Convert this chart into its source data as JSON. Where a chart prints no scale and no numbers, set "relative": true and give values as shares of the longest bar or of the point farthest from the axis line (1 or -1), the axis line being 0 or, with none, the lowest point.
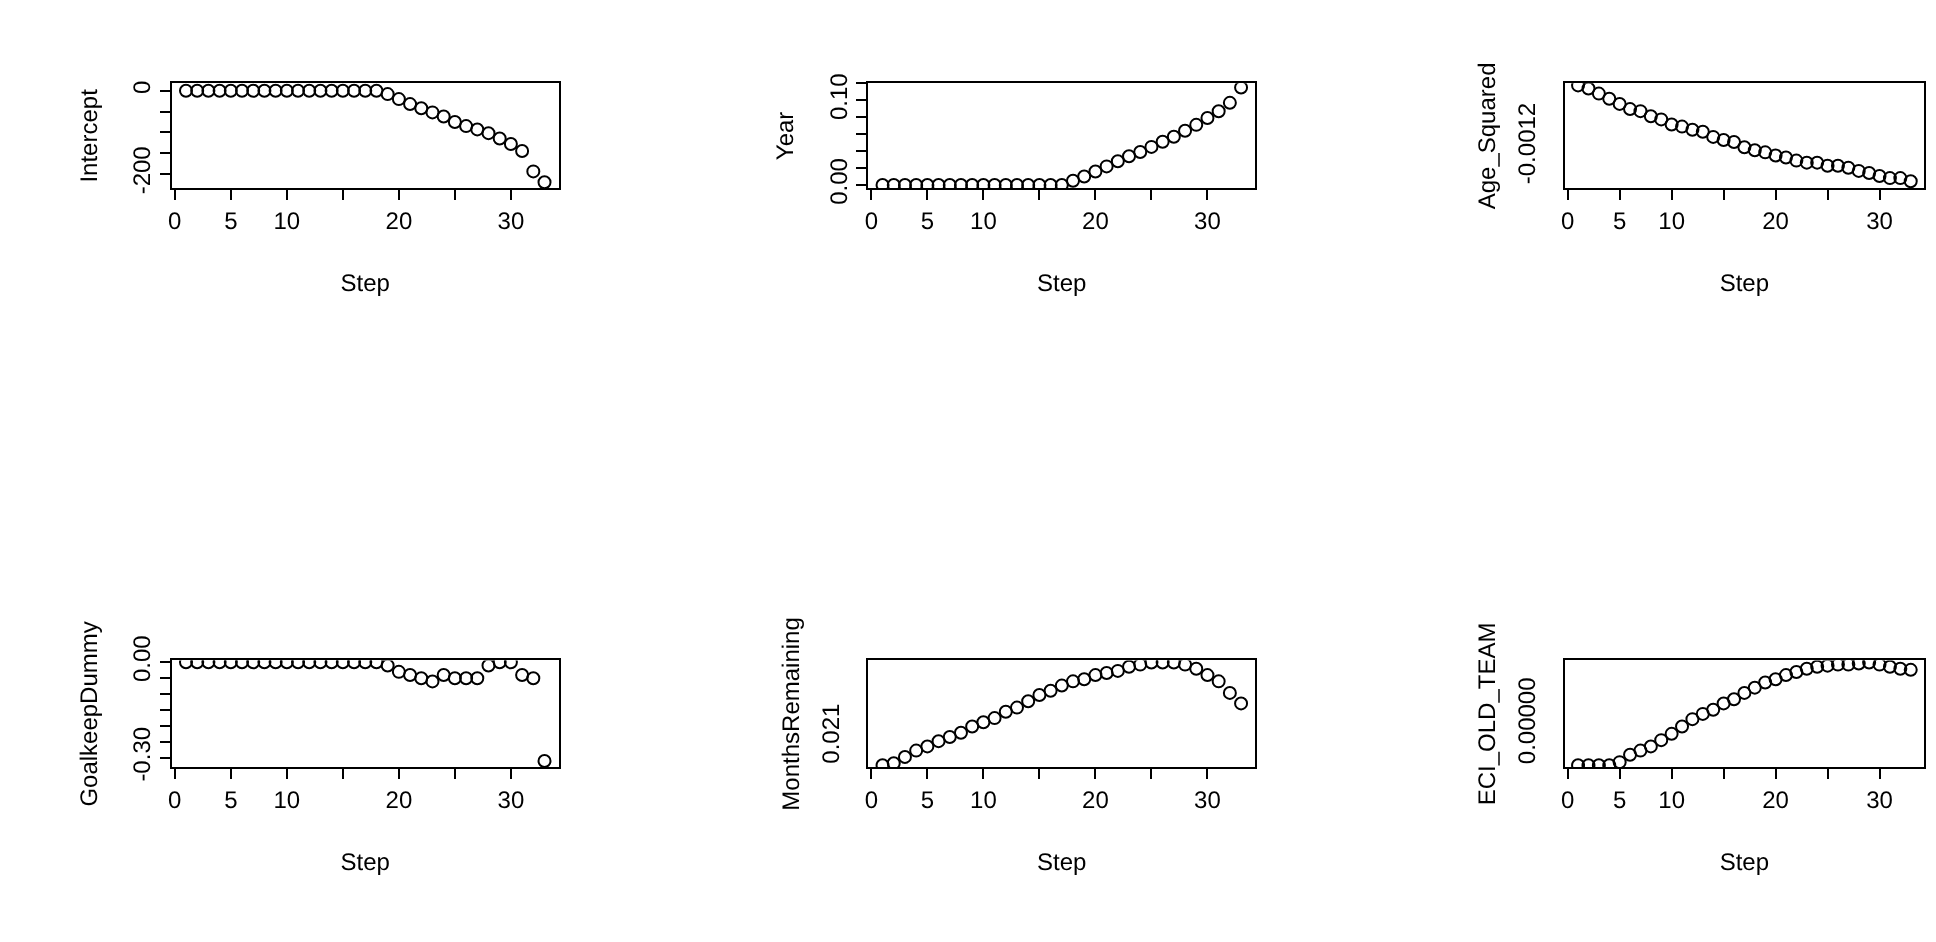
{
  "chart_data": [
    {
      "type": "scatter",
      "xlabel": "Step",
      "ylabel": "Intercept",
      "marker": "circle",
      "color": "#000000",
      "grid": false,
      "x": [
        1,
        2,
        3,
        4,
        5,
        6,
        7,
        8,
        9,
        10,
        11,
        12,
        13,
        14,
        15,
        16,
        17,
        18,
        19,
        20,
        21,
        22,
        23,
        24,
        25,
        26,
        27,
        28,
        29,
        30,
        31,
        32,
        33
      ],
      "values": [
        0,
        0,
        0,
        0,
        0,
        0,
        0,
        0,
        0,
        0,
        0,
        0,
        0,
        0,
        0,
        0,
        0,
        0,
        -8,
        -20,
        -32,
        -42,
        -52,
        -62,
        -75,
        -85,
        -93,
        -102,
        -115,
        -128,
        -145,
        -194,
        -220
      ],
      "xlim": [
        -0.28,
        34.28
      ],
      "xticks": [
        0,
        5,
        10,
        20,
        30
      ],
      "ylim": [
        -235,
        18
      ],
      "yticks": [
        {
          "value": -200,
          "label": "-200"
        },
        {
          "value": -150,
          "label": null
        },
        {
          "value": -100,
          "label": null
        },
        {
          "value": -50,
          "label": null
        },
        0
      ]
    },
    {
      "type": "scatter",
      "xlabel": "Step",
      "ylabel": "Year",
      "marker": "circle",
      "color": "#000000",
      "grid": false,
      "x": [
        1,
        2,
        3,
        4,
        5,
        6,
        7,
        8,
        9,
        10,
        11,
        12,
        13,
        14,
        15,
        16,
        17,
        18,
        19,
        20,
        21,
        22,
        23,
        24,
        25,
        26,
        27,
        28,
        29,
        30,
        31,
        32,
        33
      ],
      "values": [
        0,
        0,
        0,
        0,
        0,
        0,
        0,
        0,
        0,
        0,
        0,
        0,
        0,
        0,
        0,
        0,
        0,
        0.005,
        0.01,
        0.016,
        0.022,
        0.028,
        0.034,
        0.039,
        0.045,
        0.051,
        0.057,
        0.064,
        0.071,
        0.079,
        0.087,
        0.097,
        0.115
      ],
      "xlim": [
        -0.28,
        34.28
      ],
      "xticks": [
        0,
        5,
        10,
        20,
        30
      ],
      "ylim": [
        -0.004,
        0.12
      ],
      "yticks": [
        {
          "value": 0,
          "label": "0.00"
        },
        {
          "value": 0.02,
          "label": null
        },
        {
          "value": 0.04,
          "label": null
        },
        {
          "value": 0.06,
          "label": null
        },
        {
          "value": 0.08,
          "label": null
        },
        {
          "value": 0.1,
          "label": "0.10"
        },
        {
          "value": 0.12,
          "label": null
        }
      ]
    },
    {
      "type": "scatter",
      "xlabel": "Step",
      "ylabel": "Age_Squared",
      "marker": "circle",
      "color": "#000000",
      "grid": false,
      "x": [
        1,
        2,
        3,
        4,
        5,
        6,
        7,
        8,
        9,
        10,
        11,
        12,
        13,
        14,
        15,
        16,
        17,
        18,
        19,
        20,
        21,
        22,
        23,
        24,
        25,
        26,
        27,
        28,
        29,
        30,
        31,
        32,
        33
      ],
      "values": [
        1.0,
        0.97,
        0.92,
        0.87,
        0.82,
        0.77,
        0.75,
        0.7,
        0.67,
        0.62,
        0.6,
        0.57,
        0.55,
        0.5,
        0.47,
        0.45,
        0.4,
        0.37,
        0.35,
        0.32,
        0.3,
        0.27,
        0.25,
        0.25,
        0.22,
        0.22,
        0.2,
        0.17,
        0.15,
        0.12,
        0.1,
        0.1,
        0.07
      ],
      "relative": true,
      "annotations": [
        "-0.0012"
      ],
      "xlim": [
        -0.28,
        34.28
      ],
      "xticks": [
        0,
        5,
        10,
        20,
        30
      ]
    },
    {
      "type": "scatter",
      "xlabel": "Step",
      "ylabel": "GoalkeepDummy",
      "marker": "circle",
      "color": "#000000",
      "grid": false,
      "x": [
        1,
        2,
        3,
        4,
        5,
        6,
        7,
        8,
        9,
        10,
        11,
        12,
        13,
        14,
        15,
        16,
        17,
        18,
        19,
        20,
        21,
        22,
        23,
        24,
        25,
        26,
        27,
        28,
        29,
        30,
        31,
        32,
        33
      ],
      "values": [
        0,
        0,
        0,
        0,
        0,
        0,
        0,
        0,
        0,
        0,
        0,
        0,
        0,
        0,
        0,
        0,
        0,
        0,
        -0.01,
        -0.03,
        -0.04,
        -0.05,
        -0.06,
        -0.04,
        -0.05,
        -0.05,
        -0.05,
        -0.01,
        0,
        0,
        -0.04,
        -0.05,
        -0.31
      ],
      "xlim": [
        -0.28,
        34.28
      ],
      "xticks": [
        0,
        5,
        10,
        20,
        30
      ],
      "ylim": [
        -0.33,
        0.006
      ],
      "yticks": [
        {
          "value": -0.3,
          "label": "-0.30"
        },
        {
          "value": -0.25,
          "label": null
        },
        {
          "value": -0.2,
          "label": null
        },
        {
          "value": -0.15,
          "label": null
        },
        {
          "value": -0.1,
          "label": null
        },
        {
          "value": -0.05,
          "label": null
        },
        {
          "value": 0,
          "label": "0.00"
        }
      ]
    },
    {
      "type": "scatter",
      "xlabel": "Step",
      "ylabel": "MonthsRemaining",
      "marker": "circle",
      "color": "#000000",
      "grid": false,
      "x": [
        1,
        2,
        3,
        4,
        5,
        6,
        7,
        8,
        9,
        10,
        11,
        12,
        13,
        14,
        15,
        16,
        17,
        18,
        19,
        20,
        21,
        22,
        23,
        24,
        25,
        26,
        27,
        28,
        29,
        30,
        31,
        32,
        33
      ],
      "values": [
        0.02,
        0.04,
        0.1,
        0.16,
        0.2,
        0.25,
        0.29,
        0.33,
        0.39,
        0.43,
        0.47,
        0.53,
        0.57,
        0.63,
        0.69,
        0.73,
        0.78,
        0.82,
        0.84,
        0.88,
        0.9,
        0.92,
        0.96,
        0.98,
        1.0,
        1.0,
        1.0,
        0.98,
        0.94,
        0.88,
        0.82,
        0.71,
        0.61
      ],
      "relative": true,
      "annotations": [
        "0.021"
      ],
      "xlim": [
        -0.28,
        34.28
      ],
      "xticks": [
        0,
        5,
        10,
        20,
        30
      ]
    },
    {
      "type": "scatter",
      "xlabel": "Step",
      "ylabel": "ECI_OLD_TEAM",
      "marker": "circle",
      "color": "#000000",
      "grid": false,
      "x": [
        1,
        2,
        3,
        4,
        5,
        6,
        7,
        8,
        9,
        10,
        11,
        12,
        13,
        14,
        15,
        16,
        17,
        18,
        19,
        20,
        21,
        22,
        23,
        24,
        25,
        26,
        27,
        28,
        29,
        30,
        31,
        32,
        33
      ],
      "values": [
        0.02,
        0.02,
        0.02,
        0.02,
        0.05,
        0.12,
        0.16,
        0.2,
        0.26,
        0.32,
        0.39,
        0.46,
        0.51,
        0.55,
        0.61,
        0.65,
        0.71,
        0.76,
        0.81,
        0.84,
        0.88,
        0.91,
        0.94,
        0.96,
        0.97,
        0.98,
        0.98,
        0.99,
        1.0,
        0.98,
        0.96,
        0.94,
        0.93
      ],
      "relative": true,
      "annotations": [
        "0.00000"
      ],
      "xlim": [
        -0.28,
        34.28
      ],
      "xticks": [
        0,
        5,
        10,
        20,
        30
      ]
    }
  ]
}
